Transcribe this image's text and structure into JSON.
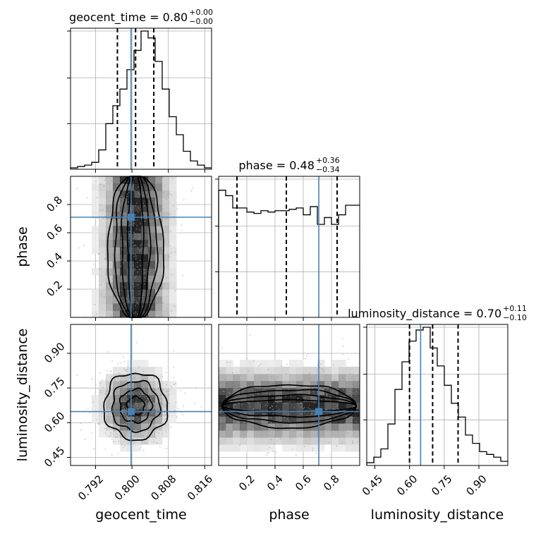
{
  "colors": {
    "truth": "#4682b4",
    "hist": "#000000",
    "grid": "#b0b0b0",
    "scatter": "#9a9a9a"
  },
  "chart_data": {
    "type": "corner",
    "parameters": [
      "geocent_time",
      "phase",
      "luminosity_distance"
    ],
    "truths": {
      "geocent_time": 0.7998,
      "phase": 0.71,
      "luminosity_distance": 0.648
    },
    "titles": {
      "geocent_time": {
        "label": "geocent_time = 0.80",
        "upper": "+0.00",
        "lower": "−0.00"
      },
      "phase": {
        "label": "phase = 0.48",
        "upper": "+0.36",
        "lower": "−0.34"
      },
      "luminosity_distance": {
        "label": "luminosity_distance = 0.70",
        "upper": "+0.11",
        "lower": "−0.10"
      }
    },
    "axis_labels": {
      "x": [
        "geocent_time",
        "phase",
        "luminosity_distance"
      ],
      "y": [
        "phase",
        "luminosity_distance"
      ]
    },
    "ranges": {
      "geocent_time": [
        0.7865,
        0.8175
      ],
      "phase": [
        0.0,
        1.0
      ],
      "luminosity_distance": [
        0.415,
        1.025
      ]
    },
    "ticks": {
      "geocent_time": [
        "0.792",
        "0.800",
        "0.808",
        "0.816"
      ],
      "phase": [
        "0.2",
        "0.4",
        "0.6",
        "0.8"
      ],
      "luminosity_distance": [
        "0.45",
        "0.60",
        "0.75",
        "0.90"
      ]
    },
    "quantiles": {
      "geocent_time": [
        0.7968,
        0.8008,
        0.8048
      ],
      "phase": [
        0.13,
        0.48,
        0.84
      ],
      "luminosity_distance": [
        0.6,
        0.7,
        0.81
      ]
    },
    "histograms": {
      "geocent_time": {
        "edges_start": 0.7865,
        "bin_width": 0.00155,
        "counts": [
          1,
          2,
          3,
          5,
          14,
          33,
          46,
          58,
          72,
          86,
          100,
          95,
          78,
          58,
          38,
          25,
          13,
          6,
          3,
          1
        ]
      },
      "phase": {
        "edges_start": 0.0,
        "bin_width": 0.05,
        "counts": [
          93,
          89,
          80,
          80,
          77,
          76,
          78,
          77,
          78,
          78,
          79,
          80,
          75,
          81,
          68,
          73,
          68,
          75,
          82,
          82
        ]
      },
      "luminosity_distance": {
        "edges_start": 0.415,
        "bin_width": 0.0305,
        "counts": [
          2,
          6,
          12,
          30,
          55,
          75,
          90,
          98,
          100,
          85,
          72,
          58,
          45,
          35,
          22,
          16,
          10,
          8,
          6,
          3
        ]
      }
    },
    "grid": true
  }
}
